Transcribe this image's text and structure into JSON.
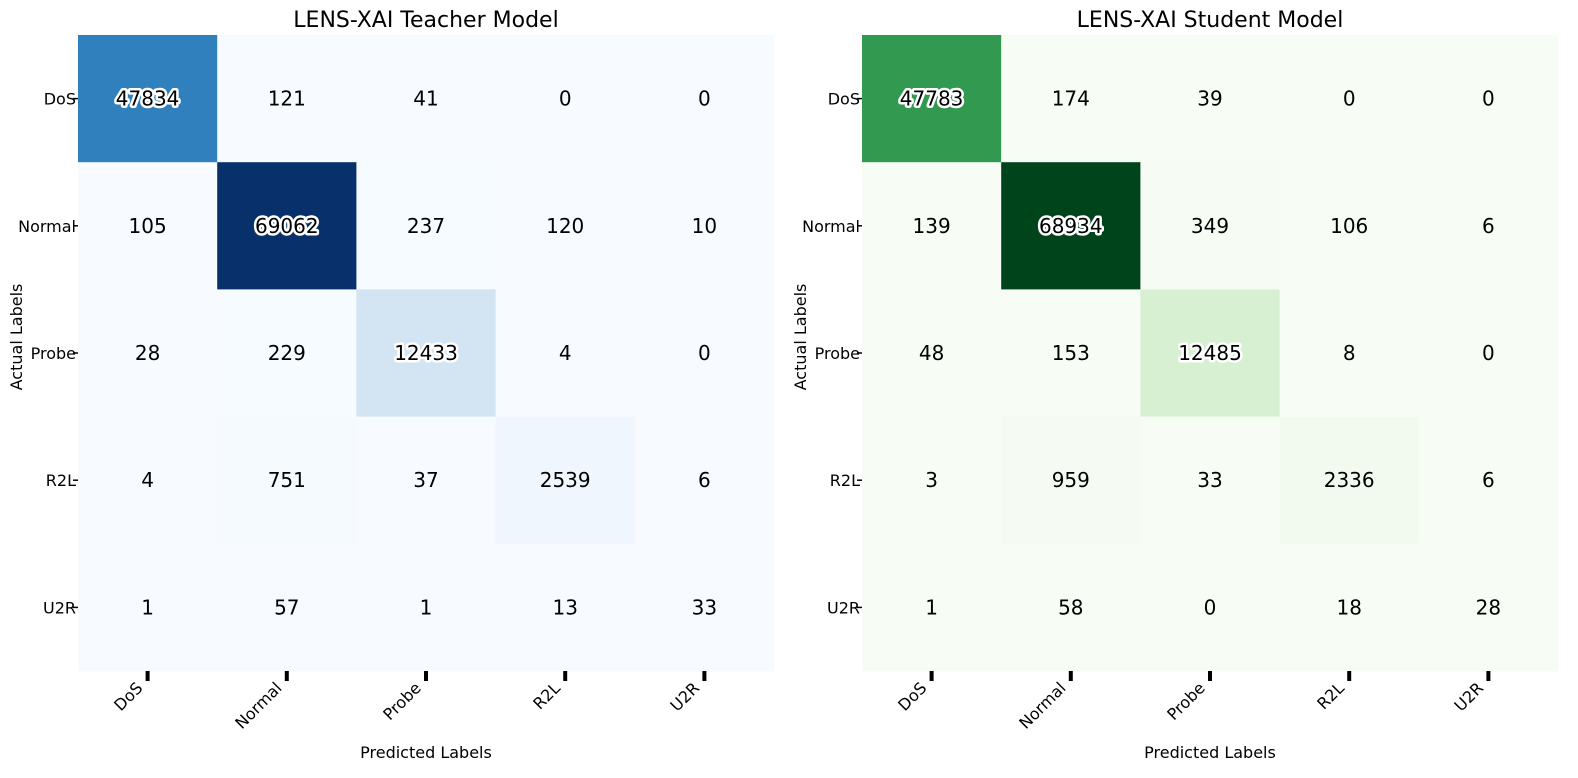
{
  "chart_data": [
    {
      "type": "heatmap",
      "title": "LENS-XAI Teacher Model",
      "xlabel": "Predicted Labels",
      "ylabel": "Actual Labels",
      "x_categories": [
        "DoS",
        "Normal",
        "Probe",
        "R2L",
        "U2R"
      ],
      "y_categories": [
        "DoS",
        "Normal",
        "Probe",
        "R2L",
        "U2R"
      ],
      "colormap": "Blues",
      "color_low": "#f7fbff",
      "color_high": "#08306b",
      "values": [
        [
          47834,
          121,
          41,
          0,
          0
        ],
        [
          105,
          69062,
          237,
          120,
          10
        ],
        [
          28,
          229,
          12433,
          4,
          0
        ],
        [
          4,
          751,
          37,
          2539,
          6
        ],
        [
          1,
          57,
          1,
          13,
          33
        ]
      ]
    },
    {
      "type": "heatmap",
      "title": "LENS-XAI Student Model",
      "xlabel": "Predicted Labels",
      "ylabel": "Actual Labels",
      "x_categories": [
        "DoS",
        "Normal",
        "Probe",
        "R2L",
        "U2R"
      ],
      "y_categories": [
        "DoS",
        "Normal",
        "Probe",
        "R2L",
        "U2R"
      ],
      "colormap": "Greens",
      "color_low": "#f7fcf5",
      "color_high": "#00441b",
      "values": [
        [
          47783,
          174,
          39,
          0,
          0
        ],
        [
          139,
          68934,
          349,
          106,
          6
        ],
        [
          48,
          153,
          12485,
          8,
          0
        ],
        [
          3,
          959,
          33,
          2336,
          6
        ],
        [
          1,
          58,
          0,
          18,
          28
        ]
      ]
    }
  ]
}
